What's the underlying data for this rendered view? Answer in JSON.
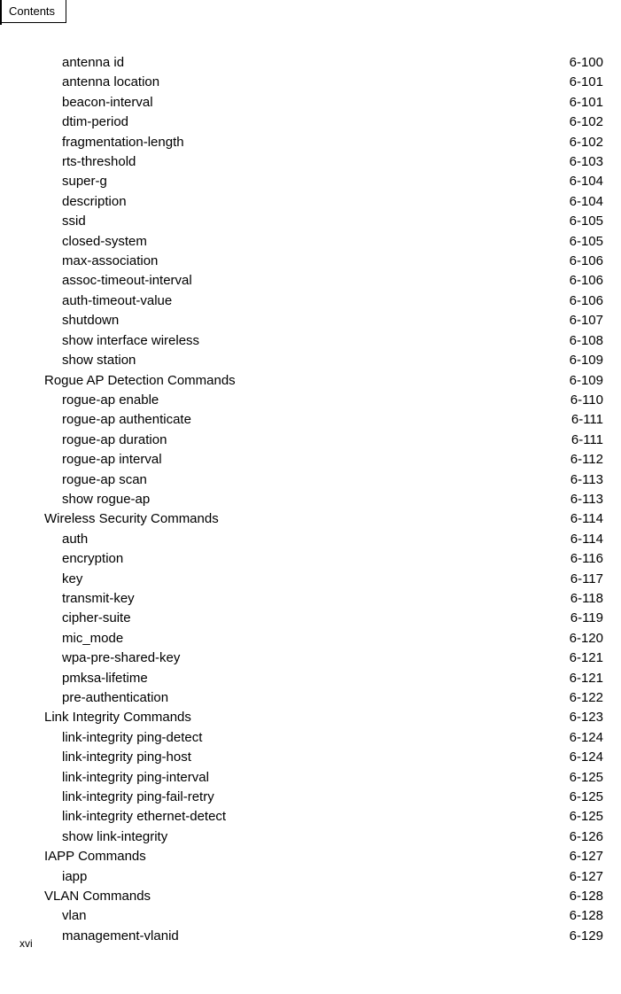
{
  "header": {
    "tab_label": "Contents"
  },
  "footer": {
    "roman": "xvi"
  },
  "toc": [
    {
      "label": "antenna id",
      "page": "6-100",
      "indent": 2
    },
    {
      "label": "antenna location",
      "page": "6-101",
      "indent": 2
    },
    {
      "label": "beacon-interval",
      "page": "6-101",
      "indent": 2
    },
    {
      "label": "dtim-period",
      "page": "6-102",
      "indent": 2
    },
    {
      "label": "fragmentation-length",
      "page": "6-102",
      "indent": 2
    },
    {
      "label": "rts-threshold",
      "page": "6-103",
      "indent": 2
    },
    {
      "label": "super-g",
      "page": "6-104",
      "indent": 2
    },
    {
      "label": "description",
      "page": "6-104",
      "indent": 2
    },
    {
      "label": "ssid",
      "page": "6-105",
      "indent": 2
    },
    {
      "label": "closed-system",
      "page": "6-105",
      "indent": 2
    },
    {
      "label": "max-association",
      "page": "6-106",
      "indent": 2
    },
    {
      "label": "assoc-timeout-interval",
      "page": "6-106",
      "indent": 2
    },
    {
      "label": "auth-timeout-value",
      "page": "6-106",
      "indent": 2
    },
    {
      "label": "shutdown",
      "page": "6-107",
      "indent": 2
    },
    {
      "label": "show interface wireless",
      "page": "6-108",
      "indent": 2
    },
    {
      "label": "show station",
      "page": "6-109",
      "indent": 2
    },
    {
      "label": "Rogue AP Detection Commands",
      "page": "6-109",
      "indent": 1
    },
    {
      "label": "rogue-ap enable",
      "page": "6-110",
      "indent": 2
    },
    {
      "label": "rogue-ap authenticate",
      "page": "6-111",
      "indent": 2
    },
    {
      "label": "rogue-ap duration",
      "page": "6-111",
      "indent": 2
    },
    {
      "label": "rogue-ap interval",
      "page": "6-112",
      "indent": 2
    },
    {
      "label": "rogue-ap scan",
      "page": "6-113",
      "indent": 2
    },
    {
      "label": "show rogue-ap",
      "page": "6-113",
      "indent": 2
    },
    {
      "label": "Wireless Security Commands",
      "page": "6-114",
      "indent": 1
    },
    {
      "label": "auth",
      "page": "6-114",
      "indent": 2
    },
    {
      "label": "encryption",
      "page": "6-116",
      "indent": 2
    },
    {
      "label": "key",
      "page": "6-117",
      "indent": 2
    },
    {
      "label": "transmit-key",
      "page": "6-118",
      "indent": 2
    },
    {
      "label": "cipher-suite",
      "page": "6-119",
      "indent": 2
    },
    {
      "label": "mic_mode",
      "page": "6-120",
      "indent": 2
    },
    {
      "label": "wpa-pre-shared-key",
      "page": "6-121",
      "indent": 2
    },
    {
      "label": "pmksa-lifetime",
      "page": "6-121",
      "indent": 2
    },
    {
      "label": "pre-authentication",
      "page": "6-122",
      "indent": 2
    },
    {
      "label": "Link Integrity Commands",
      "page": "6-123",
      "indent": 1
    },
    {
      "label": "link-integrity ping-detect",
      "page": "6-124",
      "indent": 2
    },
    {
      "label": "link-integrity ping-host",
      "page": "6-124",
      "indent": 2
    },
    {
      "label": "link-integrity ping-interval",
      "page": "6-125",
      "indent": 2
    },
    {
      "label": "link-integrity ping-fail-retry",
      "page": "6-125",
      "indent": 2
    },
    {
      "label": "link-integrity ethernet-detect",
      "page": "6-125",
      "indent": 2
    },
    {
      "label": "show link-integrity",
      "page": "6-126",
      "indent": 2
    },
    {
      "label": "IAPP Commands",
      "page": "6-127",
      "indent": 1
    },
    {
      "label": "iapp",
      "page": "6-127",
      "indent": 2
    },
    {
      "label": "VLAN Commands",
      "page": "6-128",
      "indent": 1
    },
    {
      "label": "vlan",
      "page": "6-128",
      "indent": 2
    },
    {
      "label": "management-vlanid",
      "page": "6-129",
      "indent": 2
    }
  ]
}
